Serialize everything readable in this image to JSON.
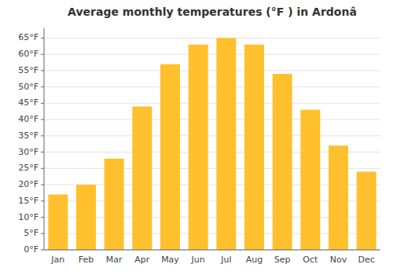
{
  "chart_data": {
    "type": "bar",
    "title": "Average monthly temperatures (°F ) in Ardonâ",
    "categories": [
      "Jan",
      "Feb",
      "Mar",
      "Apr",
      "May",
      "Jun",
      "Jul",
      "Aug",
      "Sep",
      "Oct",
      "Nov",
      "Dec"
    ],
    "values": [
      17,
      20,
      28,
      44,
      57,
      63,
      65,
      63,
      54,
      43,
      32,
      24
    ],
    "color": "#FFC02E",
    "ylim": [
      0,
      68
    ],
    "yticks": [
      {
        "value": 0,
        "label": "0°F"
      },
      {
        "value": 5,
        "label": "5°F"
      },
      {
        "value": 10,
        "label": "10°F"
      },
      {
        "value": 15,
        "label": "15°F"
      },
      {
        "value": 20,
        "label": "20°F"
      },
      {
        "value": 25,
        "label": "25°F"
      },
      {
        "value": 30,
        "label": "30°F"
      },
      {
        "value": 35,
        "label": "35°F"
      },
      {
        "value": 40,
        "label": "40°F"
      },
      {
        "value": 45,
        "label": "45°F"
      },
      {
        "value": 50,
        "label": "50°F"
      },
      {
        "value": 55,
        "label": "55°F"
      },
      {
        "value": 60,
        "label": "60°F"
      },
      {
        "value": 65,
        "label": "65°F"
      }
    ],
    "grid": true
  }
}
